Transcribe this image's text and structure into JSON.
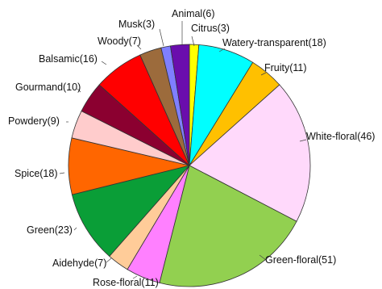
{
  "chart_data": {
    "type": "pie",
    "title": "",
    "start_angle_deg": 0,
    "direction": "clockwise",
    "slices": [
      {
        "label": "Citrus(3)",
        "name": "Citrus",
        "value": 3,
        "color": "#ffff00"
      },
      {
        "label": "Watery-transparent(18)",
        "name": "Watery-transparent",
        "value": 18,
        "color": "#00ffff"
      },
      {
        "label": "Fruity(11)",
        "name": "Fruity",
        "value": 11,
        "color": "#ffc000"
      },
      {
        "label": "White-floral(46)",
        "name": "White-floral",
        "value": 46,
        "color": "#ffd9fb"
      },
      {
        "label": "Green-floral(51)",
        "name": "Green-floral",
        "value": 51,
        "color": "#92d050"
      },
      {
        "label": "Rose-floral(11)",
        "name": "Rose-floral",
        "value": 11,
        "color": "#ff80ff"
      },
      {
        "label": "Aidehyde(7)",
        "name": "Aidehyde",
        "value": 7,
        "color": "#ffcc99"
      },
      {
        "label": "Green(23)",
        "name": "Green",
        "value": 23,
        "color": "#0a9e37"
      },
      {
        "label": "Spice(18)",
        "name": "Spice",
        "value": 18,
        "color": "#ff6600"
      },
      {
        "label": "Powdery(9)",
        "name": "Powdery",
        "value": 9,
        "color": "#ffcccc"
      },
      {
        "label": "Gourmand(10)",
        "name": "Gourmand",
        "value": 10,
        "color": "#8b0030"
      },
      {
        "label": "Balsamic(16)",
        "name": "Balsamic",
        "value": 16,
        "color": "#ff0000"
      },
      {
        "label": "Woody(7)",
        "name": "Woody",
        "value": 7,
        "color": "#9c6b3c"
      },
      {
        "label": "Musk(3)",
        "name": "Musk",
        "value": 3,
        "color": "#7f7fff"
      },
      {
        "label": "Animal(6)",
        "name": "Animal",
        "value": 6,
        "color": "#6a0dad"
      }
    ]
  }
}
